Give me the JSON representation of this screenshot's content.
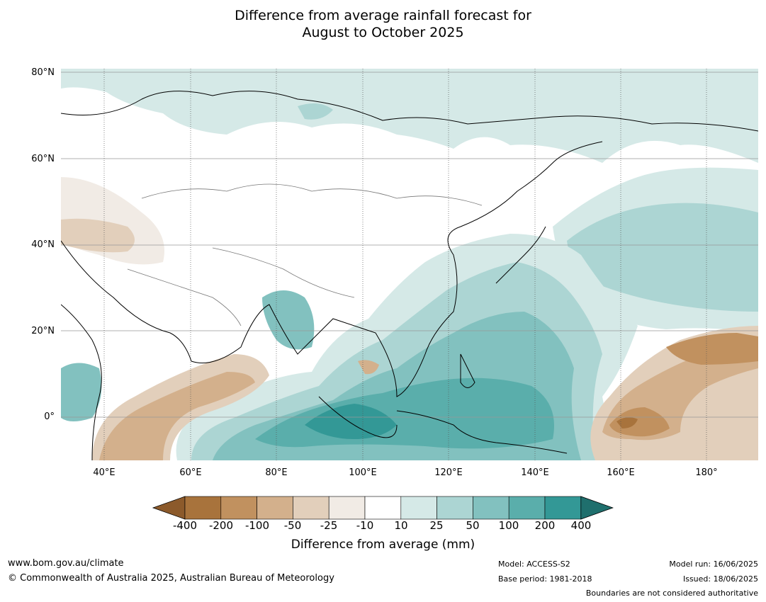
{
  "title": {
    "line1": "Difference from average rainfall forecast for",
    "line2": "August to October 2025"
  },
  "map": {
    "lat_labels": [
      "80°N",
      "60°N",
      "40°N",
      "20°N",
      "0°"
    ],
    "lon_labels": [
      "40°E",
      "60°E",
      "80°E",
      "100°E",
      "120°E",
      "140°E",
      "160°E",
      "180°"
    ]
  },
  "colorbar": {
    "ticks": [
      "-400",
      "-200",
      "-100",
      "-50",
      "-25",
      "-10",
      "10",
      "25",
      "50",
      "100",
      "200",
      "400"
    ],
    "colors": [
      "#8c5a2b",
      "#a8733c",
      "#c1915f",
      "#d3b08c",
      "#e2cfbb",
      "#f1ebe5",
      "#ffffff",
      "#d5e9e7",
      "#acd5d3",
      "#82c1bf",
      "#5aaeab",
      "#339896",
      "#1f6f6d"
    ],
    "label": "Difference from average (mm)"
  },
  "footer": {
    "website": "www.bom.gov.au/climate",
    "copyright": "© Commonwealth of Australia 2025, Australian Bureau of Meteorology",
    "model": "Model: ACCESS-S2",
    "base_period": "Base period: 1981-2018",
    "model_run": "Model run: 16/06/2025",
    "issued": "Issued: 18/06/2025",
    "disclaimer": "Boundaries are not considered authoritative"
  }
}
